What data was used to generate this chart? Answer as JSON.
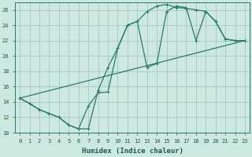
{
  "xlabel": "Humidex (Indice chaleur)",
  "bg_color": "#cce8e0",
  "grid_color": "#aaccc4",
  "line_color": "#2a7a6a",
  "xlim": [
    -0.5,
    23.5
  ],
  "ylim": [
    10,
    27
  ],
  "xticks": [
    0,
    1,
    2,
    3,
    4,
    5,
    6,
    7,
    8,
    9,
    10,
    11,
    12,
    13,
    14,
    15,
    16,
    17,
    18,
    19,
    20,
    21,
    22,
    23
  ],
  "yticks": [
    10,
    12,
    14,
    16,
    18,
    20,
    22,
    24,
    26
  ],
  "line1_x": [
    0,
    1,
    2,
    3,
    4,
    5,
    6,
    7,
    8,
    9,
    10,
    11,
    12,
    13,
    14,
    15,
    16,
    17,
    18,
    19,
    20,
    21,
    22,
    23
  ],
  "line1_y": [
    14.5,
    13.8,
    13.0,
    12.5,
    12.0,
    11.0,
    10.5,
    13.5,
    15.2,
    15.3,
    21.0,
    24.0,
    24.5,
    18.5,
    19.0,
    25.8,
    26.5,
    26.3,
    22.0,
    25.8,
    24.5,
    22.2,
    22.0,
    22.0
  ],
  "line2_x": [
    0,
    1,
    2,
    3,
    4,
    5,
    6,
    7,
    8,
    9,
    10,
    11,
    12,
    13,
    14,
    15,
    16,
    17,
    18,
    19,
    20,
    21,
    22,
    23
  ],
  "line2_y": [
    14.5,
    13.8,
    13.0,
    12.5,
    12.0,
    11.0,
    10.5,
    10.5,
    15.5,
    18.5,
    21.0,
    24.0,
    24.5,
    25.8,
    26.5,
    26.7,
    26.3,
    26.2,
    26.0,
    25.8,
    24.5,
    22.2,
    22.0,
    22.0
  ],
  "line3_x": [
    0,
    23
  ],
  "line3_y": [
    14.5,
    22.0
  ],
  "xlabel_fontsize": 6.5,
  "tick_fontsize": 5.0
}
